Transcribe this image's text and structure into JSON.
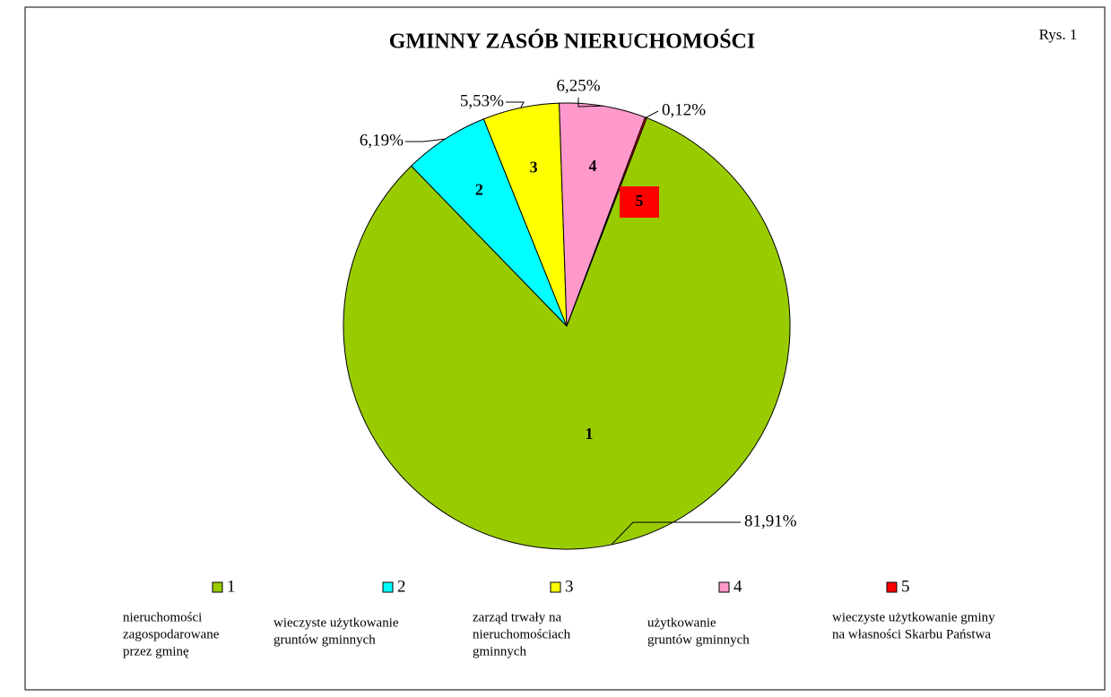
{
  "chart_data": {
    "type": "pie",
    "title": "GMINNY ZASÓB NIERUCHOMOŚCI",
    "figure_label": "Rys. 1",
    "categories": [
      "1",
      "2",
      "3",
      "4",
      "5"
    ],
    "values": [
      81.91,
      6.19,
      5.53,
      6.25,
      0.12
    ],
    "value_labels": [
      "81,91%",
      "6,19%",
      "5,53%",
      "6,25%",
      "0,12%"
    ],
    "colors": [
      "#99cc00",
      "#00ffff",
      "#ffff00",
      "#ff99cc",
      "#ff0000"
    ],
    "descriptions": [
      [
        "nieruchomości",
        "zagospodarowane",
        "przez gminę"
      ],
      [
        "wieczyste użytkowanie",
        "gruntów gminnych"
      ],
      [
        "zarząd trwały na",
        "nieruchomościach",
        "gminnych"
      ],
      [
        "użytkowanie",
        "gruntów gminnych"
      ],
      [
        "wieczyste użytkowanie gminy",
        "na własności Skarbu Państwa"
      ]
    ],
    "legend": "bottom"
  }
}
